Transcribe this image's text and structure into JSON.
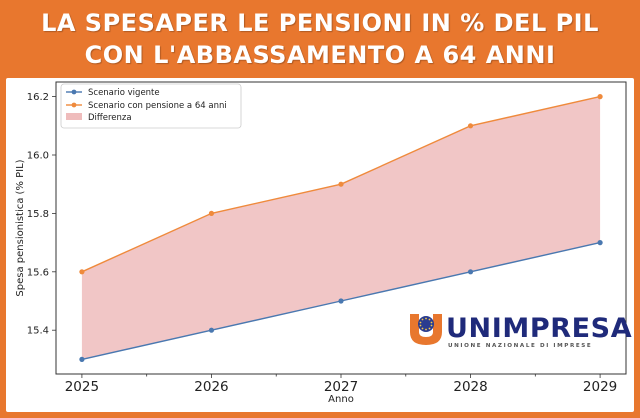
{
  "header": {
    "title_line1": "LA SPESAPER LE PENSIONI IN % DEL PIL",
    "title_line2": "CON L'ABBASSAMENTO A 64 ANNI"
  },
  "logo": {
    "name": "UNIMPRESA",
    "tagline": "UNIONE NAZIONALE DI IMPRESE"
  },
  "colors": {
    "background": "#e8772e",
    "series_vigente": "#4a78b0",
    "series_64": "#ef8a3c",
    "fill_difference": "#efbcbc"
  },
  "chart_data": {
    "type": "line",
    "x": [
      2025,
      2026,
      2027,
      2028,
      2029
    ],
    "series": [
      {
        "name": "Scenario vigente",
        "values": [
          15.3,
          15.4,
          15.5,
          15.6,
          15.7
        ]
      },
      {
        "name": "Scenario con pensione a 64 anni",
        "values": [
          15.6,
          15.8,
          15.9,
          16.1,
          16.2
        ]
      }
    ],
    "fill_label": "Differenza",
    "xlabel": "Anno",
    "ylabel": "Spesa pensionistica (% PIL)",
    "xlim": [
      2024.8,
      2029.2
    ],
    "ylim": [
      15.25,
      16.25
    ],
    "yticks": [
      "15.4",
      "15.6",
      "15.8",
      "16.0",
      "16.2"
    ],
    "xticks": [
      "2025",
      "2026",
      "2027",
      "2028",
      "2029"
    ],
    "legend_position": "top-left",
    "grid": false
  }
}
